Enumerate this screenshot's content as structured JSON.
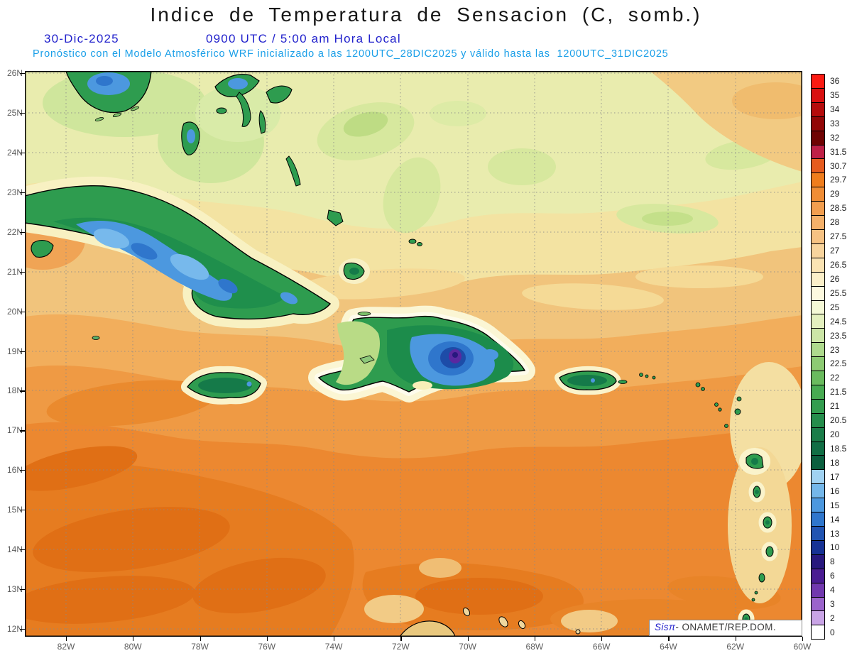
{
  "title": "Indice de Temperatura de Sensacion (C, somb.)",
  "header": {
    "date": "30-Dic-2025",
    "time": "0900 UTC / 5:00 am Hora Local",
    "model_line": "Pronóstico con el Modelo Atmosférico WRF inicializado a las 1200UTC_28DIC2025 y válido hasta las  1200UTC_31DIC2025"
  },
  "colors": {
    "header_blue": "#2222cc",
    "subtitle_cyan": "#1a9fe8",
    "sea_warm_orange": "#ec8830",
    "land_cool_green": "#2e9c4f",
    "mountain_cold_blue": "#4c98df"
  },
  "axes": {
    "lat_labels": [
      "26N",
      "25N",
      "24N",
      "23N",
      "22N",
      "21N",
      "20N",
      "19N",
      "18N",
      "17N",
      "16N",
      "15N",
      "14N",
      "13N",
      "12N"
    ],
    "lon_labels": [
      "82W",
      "80W",
      "78W",
      "76W",
      "74W",
      "72W",
      "70W",
      "68W",
      "66W",
      "64W",
      "62W",
      "60W"
    ]
  },
  "colorbar": [
    {
      "label": "36",
      "color": "#fb1a12"
    },
    {
      "label": "35",
      "color": "#d91010"
    },
    {
      "label": "34",
      "color": "#b50c0c"
    },
    {
      "label": "33",
      "color": "#920707"
    },
    {
      "label": "32",
      "color": "#6f0303"
    },
    {
      "label": "31.5",
      "color": "#bf2047"
    },
    {
      "label": "30.7",
      "color": "#e65b1e"
    },
    {
      "label": "29.7",
      "color": "#ef7d1d"
    },
    {
      "label": "29",
      "color": "#f08d35"
    },
    {
      "label": "28.5",
      "color": "#f29e4f"
    },
    {
      "label": "28",
      "color": "#f4b069"
    },
    {
      "label": "27.5",
      "color": "#f6c283"
    },
    {
      "label": "27",
      "color": "#f8d49d"
    },
    {
      "label": "26.5",
      "color": "#fae3b3"
    },
    {
      "label": "26",
      "color": "#fbefc9"
    },
    {
      "label": "25.5",
      "color": "#fdf9df"
    },
    {
      "label": "25",
      "color": "#f4f8d6"
    },
    {
      "label": "24.5",
      "color": "#e4f0bf"
    },
    {
      "label": "23.5",
      "color": "#cce6a7"
    },
    {
      "label": "23",
      "color": "#aeda8d"
    },
    {
      "label": "22.5",
      "color": "#8dcb73"
    },
    {
      "label": "22",
      "color": "#6abb5e"
    },
    {
      "label": "21.5",
      "color": "#48ab52"
    },
    {
      "label": "21",
      "color": "#339d4f"
    },
    {
      "label": "20.5",
      "color": "#258d4c"
    },
    {
      "label": "20",
      "color": "#1a7d49"
    },
    {
      "label": "18.5",
      "color": "#116e45"
    },
    {
      "label": "18",
      "color": "#0b5f3f"
    },
    {
      "label": "17",
      "color": "#a0d2f2"
    },
    {
      "label": "16",
      "color": "#74b7ea"
    },
    {
      "label": "15",
      "color": "#4c98df"
    },
    {
      "label": "14",
      "color": "#2f76cc"
    },
    {
      "label": "13",
      "color": "#2154b2"
    },
    {
      "label": "10",
      "color": "#173295"
    },
    {
      "label": "8",
      "color": "#28187e"
    },
    {
      "label": "6",
      "color": "#4a1c92"
    },
    {
      "label": "4",
      "color": "#7138ae"
    },
    {
      "label": "3",
      "color": "#9b64cc"
    },
    {
      "label": "2",
      "color": "#c9a4e6"
    },
    {
      "label": "0",
      "color": "#ffffff"
    }
  ],
  "attribution": {
    "brand": "Sisπ",
    "text": "- ONAMET/REP.DOM."
  }
}
